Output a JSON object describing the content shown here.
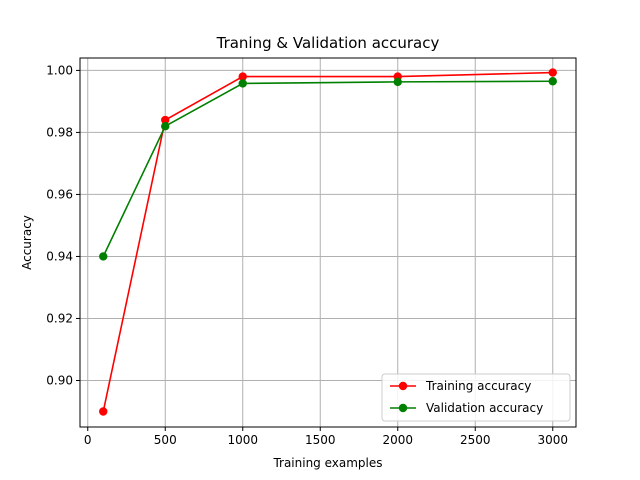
{
  "chart_data": {
    "type": "line",
    "title": "Traning & Validation accuracy",
    "xlabel": "Training examples",
    "ylabel": "Accuracy",
    "xlim": [
      -50,
      3150
    ],
    "ylim": [
      0.885,
      1.004
    ],
    "x_ticks": [
      0,
      500,
      1000,
      1500,
      2000,
      2500,
      3000
    ],
    "x_tick_labels": [
      "0",
      "500",
      "1000",
      "1500",
      "2000",
      "2500",
      "3000"
    ],
    "y_ticks": [
      0.9,
      0.92,
      0.94,
      0.96,
      0.98,
      1.0
    ],
    "y_tick_labels": [
      "0.90",
      "0.92",
      "0.94",
      "0.96",
      "0.98",
      "1.00"
    ],
    "grid": true,
    "legend_position": "lower-right",
    "x": [
      100,
      500,
      1000,
      2000,
      3000
    ],
    "series": [
      {
        "name": "Training accuracy",
        "color": "#ff0000",
        "marker": "circle",
        "values": [
          0.89,
          0.984,
          0.998,
          0.998,
          0.9993
        ]
      },
      {
        "name": "Validation accuracy",
        "color": "#008000",
        "marker": "circle",
        "values": [
          0.94,
          0.982,
          0.9958,
          0.9963,
          0.9965
        ]
      }
    ]
  }
}
